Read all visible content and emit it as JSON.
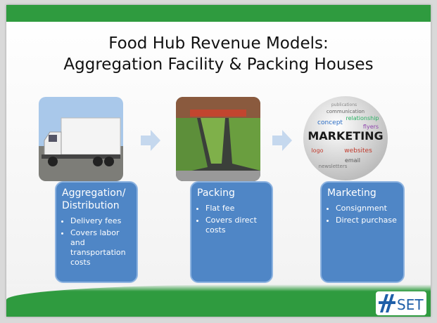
{
  "header": {
    "title_lines": [
      "Food Hub Revenue Models:",
      "Aggregation Facility & Packing Houses"
    ]
  },
  "steps": [
    {
      "heading_lines": [
        "Aggregation/",
        "Distribution"
      ],
      "bullets": [
        "Delivery fees",
        "Covers labor and transportation costs"
      ]
    },
    {
      "heading_lines": [
        "Packing"
      ],
      "bullets": [
        "Flat fee",
        "Covers direct costs"
      ]
    },
    {
      "heading_lines": [
        "Marketing"
      ],
      "bullets": [
        "Consignment",
        "Direct purchase"
      ]
    }
  ],
  "marketing_image_words": [
    "MARKETING",
    "concept",
    "websites",
    "logo",
    "email",
    "flyers",
    "relationship",
    "communication",
    "newsletters",
    "publications"
  ],
  "logo": "SET"
}
